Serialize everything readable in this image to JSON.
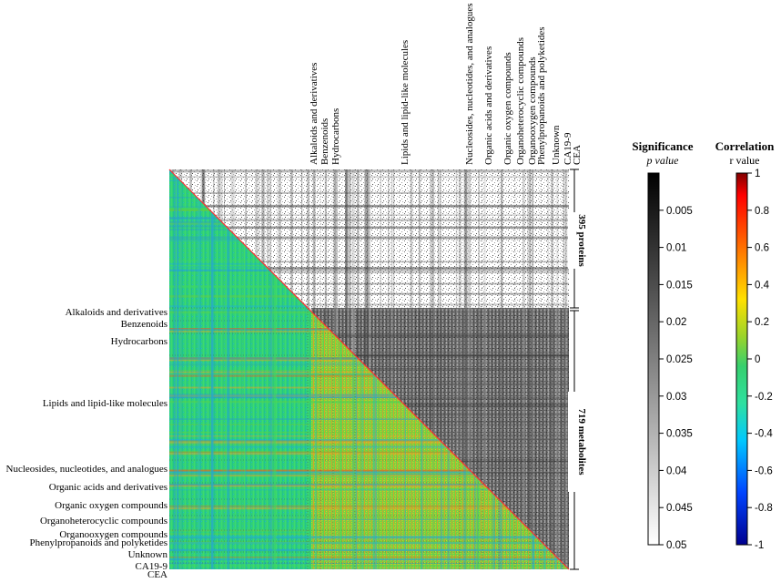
{
  "chart_data": {
    "type": "heatmap",
    "title": "",
    "variables_order": "395 proteins, then 719 metabolites grouped by class, then CA19-9 and CEA",
    "blocks": [
      {
        "label": "395 proteins",
        "count": 395
      },
      {
        "label": "719 metabolites",
        "count": 719
      }
    ],
    "row_labels": [
      "Alkaloids and derivatives",
      "Benzenoids",
      "Hydrocarbons",
      "Lipids and lipid-like molecules",
      "Nucleosides, nucleotides, and analogues",
      "Organic acids and derivatives",
      "Organic oxygen compounds",
      "Organoheterocyclic compounds",
      "Organooxygen compounds",
      "Phenylpropanoids and polyketides",
      "Unknown",
      "CA19-9",
      "CEA"
    ],
    "column_labels": [
      "Alkaloids and derivatives",
      "Benzenoids",
      "Hydrocarbons",
      "Lipids and lipid-like molecules",
      "Nucleosides, nucleotides, and analogues",
      "Organic acids and derivatives",
      "Organic oxygen compounds",
      "Organoheterocyclic compounds",
      "Organooxygen compounds",
      "Phenylpropanoids and polyketides",
      "Unknown",
      "CA19-9",
      "CEA"
    ],
    "lower_triangle": "Correlation (r value)",
    "upper_triangle": "Significance (p value)",
    "significance_scale": {
      "title": "Significance",
      "subtitle": "p value",
      "range": [
        0.05,
        0
      ],
      "ticks": [
        "0.005",
        "0.01",
        "0.015",
        "0.02",
        "0.025",
        "0.03",
        "0.035",
        "0.04",
        "0.045",
        "0.05"
      ],
      "colors": [
        "#000000",
        "#ffffff"
      ]
    },
    "correlation_scale": {
      "title": "Correlation",
      "subtitle": "r value",
      "range": [
        -1,
        1
      ],
      "ticks": [
        "1",
        "0.8",
        "0.6",
        "0.4",
        "0.2",
        "0",
        "-0.2",
        "-0.4",
        "-0.6",
        "-0.8",
        "-1"
      ],
      "colors": [
        "#00008f",
        "#0044ff",
        "#00c8ff",
        "#2fe0a0",
        "#36d06e",
        "#9ad42a",
        "#ffe000",
        "#ff8000",
        "#ff0000",
        "#800000"
      ]
    }
  }
}
